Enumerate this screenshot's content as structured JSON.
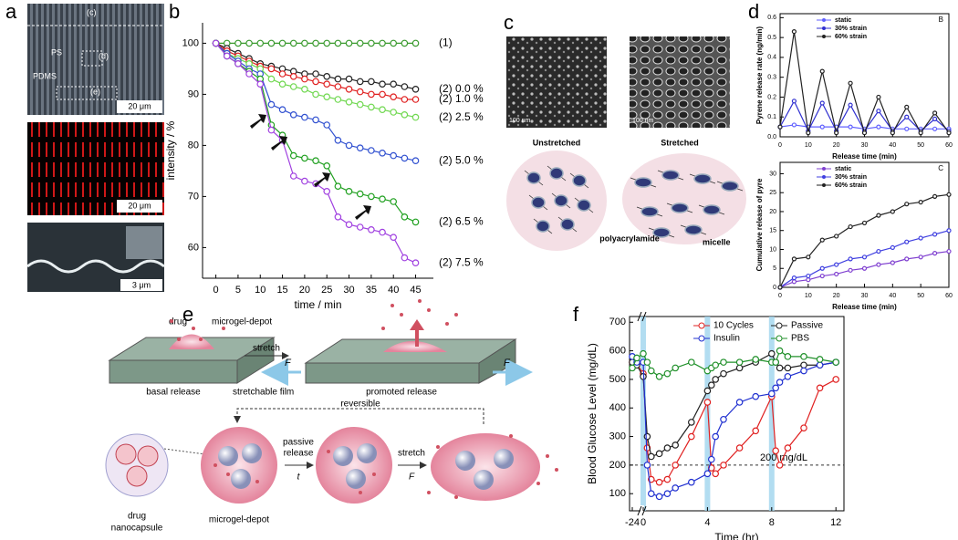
{
  "panel_labels": [
    "a",
    "b",
    "c",
    "d",
    "e",
    "f"
  ],
  "panel_a": {
    "region_c": "(c)",
    "region_d": "(d)",
    "region_e": "(e)",
    "ps": "PS",
    "pdms": "PDMS",
    "scale_top": "20 μm",
    "scale_mid": "20 μm",
    "scale_bottom": "3 μm"
  },
  "panel_c": {
    "left_caption": "Unstretched",
    "right_caption": "Stretched",
    "scale_left": "100 nm",
    "scale_right": "100 nm",
    "polymer": "polyacrylamide",
    "micelle": "micelle"
  },
  "panel_e": {
    "drug": "drug",
    "depot": "microgel-depot",
    "stretch_top": "stretch",
    "force_left": "F",
    "force_right": "F",
    "basal": "basal release",
    "film": "stretchable film",
    "promoted": "promoted release",
    "reversible": "reversible",
    "passive_1": "passive",
    "passive_2": "release",
    "time": "t",
    "stretch_bottom": "stretch",
    "force_bottom": "F",
    "nanocapsule_1": "drug",
    "nanocapsule_2": "nanocapsule",
    "depot_bottom": "microgel-depot"
  },
  "chart_data": [
    {
      "type": "line",
      "xlabel": "time / min",
      "ylabel": "intensity / %",
      "legend": "line end",
      "xlim": [
        -3,
        49
      ],
      "ylim": [
        54,
        104
      ],
      "xticks": [
        0,
        5,
        10,
        15,
        20,
        25,
        30,
        35,
        40,
        45
      ],
      "yticks": [
        60,
        70,
        80,
        90,
        100
      ],
      "x": [
        0,
        2.5,
        5,
        7.5,
        10,
        12.5,
        15,
        17.5,
        20,
        22.5,
        25,
        27.5,
        30,
        32.5,
        35,
        37.5,
        40,
        42.5,
        45
      ],
      "series": [
        {
          "name": "(1)",
          "color": "#3a9a2e",
          "values": [
            100,
            100,
            100,
            100,
            100,
            100,
            100,
            100,
            100,
            100,
            100,
            100,
            100,
            100,
            100,
            100,
            100,
            100,
            100
          ]
        },
        {
          "name": "(2) 0.0 %",
          "color": "#222222",
          "values": [
            100,
            99,
            98,
            97,
            96,
            95.5,
            95,
            94.5,
            94,
            94,
            93.5,
            93,
            93,
            92.5,
            92.5,
            92,
            92,
            91.5,
            91
          ]
        },
        {
          "name": "(2) 1.0 %",
          "color": "#e02020",
          "values": [
            100,
            98.5,
            97.5,
            96.5,
            95.5,
            95,
            94,
            93.5,
            93,
            92.5,
            92,
            91.5,
            91,
            90.5,
            90,
            90,
            89.5,
            89,
            89
          ]
        },
        {
          "name": "(2) 2.5 %",
          "color": "#70d850",
          "values": [
            100,
            98,
            97,
            96,
            95,
            93,
            92,
            91.5,
            91,
            90,
            89.5,
            89,
            88.5,
            88,
            87.5,
            87,
            86.5,
            86,
            85.5
          ]
        },
        {
          "name": "(2) 5.0 %",
          "color": "#3050d0",
          "values": [
            100,
            98,
            96.5,
            95,
            94,
            88,
            87,
            86,
            85.5,
            85,
            84,
            81,
            80,
            79.5,
            79,
            78.5,
            78,
            77.5,
            77
          ]
        },
        {
          "name": "(2) 6.5 %",
          "color": "#20a020",
          "values": [
            100,
            97.5,
            96,
            94.5,
            93,
            84,
            82,
            78,
            77.5,
            77,
            76,
            72,
            71,
            70.5,
            70,
            69.5,
            69,
            66,
            65
          ]
        },
        {
          "name": "(2) 7.5 %",
          "color": "#a040e0",
          "values": [
            100,
            97.5,
            96,
            94,
            92,
            83,
            81,
            74,
            73,
            72.5,
            71,
            66,
            64.5,
            64,
            63.5,
            63,
            62,
            58,
            57
          ]
        }
      ]
    },
    {
      "type": "line",
      "panel_letter": "B",
      "xlabel": "Release time (min)",
      "ylabel": "Pyrene release rate (ng/min)",
      "legend": "upper left",
      "xlim": [
        0,
        60
      ],
      "ylim": [
        0,
        0.62
      ],
      "xticks": [
        0,
        10,
        20,
        30,
        40,
        50,
        60
      ],
      "yticks": [
        {
          "value": 0,
          "label": "0.0"
        },
        0.1,
        0.2,
        0.3,
        0.4,
        0.5,
        0.6
      ],
      "x": [
        0,
        5,
        10,
        15,
        20,
        25,
        30,
        35,
        40,
        45,
        50,
        55,
        60
      ],
      "series": [
        {
          "name": "static",
          "color": "#6060ff",
          "values": [
            0.05,
            0.06,
            0.05,
            0.05,
            0.05,
            0.05,
            0.04,
            0.05,
            0.04,
            0.04,
            0.04,
            0.04,
            0.04
          ]
        },
        {
          "name": "30% strain",
          "color": "#3030d0",
          "values": [
            0.05,
            0.18,
            0.03,
            0.17,
            0.03,
            0.16,
            0.03,
            0.13,
            0.03,
            0.1,
            0.03,
            0.09,
            0.03
          ]
        },
        {
          "name": "60% strain",
          "color": "#222222",
          "values": [
            0.05,
            0.53,
            0.02,
            0.33,
            0.02,
            0.27,
            0.02,
            0.2,
            0.02,
            0.15,
            0.02,
            0.12,
            0.02
          ]
        }
      ]
    },
    {
      "type": "line",
      "panel_letter": "C",
      "xlabel": "Release time (min)",
      "ylabel": "Cumulative release of pyre",
      "legend": "upper left",
      "xlim": [
        0,
        60
      ],
      "ylim": [
        0,
        33
      ],
      "xticks": [
        0,
        10,
        20,
        30,
        40,
        50,
        60
      ],
      "yticks": [
        0,
        5,
        10,
        15,
        20,
        25,
        30
      ],
      "x": [
        0,
        5,
        10,
        15,
        20,
        25,
        30,
        35,
        40,
        45,
        50,
        55,
        60
      ],
      "series": [
        {
          "name": "static",
          "color": "#8040d0",
          "values": [
            0,
            1.5,
            2,
            3,
            3.5,
            4.5,
            5,
            6,
            6.5,
            7.5,
            8,
            9,
            9.5
          ]
        },
        {
          "name": "30% strain",
          "color": "#4040e0",
          "values": [
            0,
            2.5,
            3,
            5,
            6,
            7.5,
            8,
            9.5,
            10.5,
            12,
            13,
            14,
            15
          ]
        },
        {
          "name": "60% strain",
          "color": "#222222",
          "values": [
            0,
            7.5,
            8,
            12.5,
            13.5,
            16,
            17,
            19,
            20,
            22,
            22.5,
            24,
            24.5
          ]
        }
      ]
    },
    {
      "type": "line",
      "xlabel": "Time (hr)",
      "ylabel": "Blood Glucose Level (mg/dL)",
      "legend": "upper center",
      "axis_break": true,
      "xlim": [
        -24,
        12.5
      ],
      "ylim": [
        40,
        720
      ],
      "xticks": [
        -24,
        0,
        4,
        8,
        12
      ],
      "yticks": [
        100,
        200,
        300,
        400,
        500,
        600,
        700
      ],
      "highlight_x": [
        0,
        4,
        8
      ],
      "ref_line": 200,
      "ref_label": "200 mg/dL",
      "x": [
        -24,
        -12,
        0,
        0.25,
        0.5,
        1,
        1.5,
        2,
        3,
        4,
        4.25,
        4.5,
        5,
        6,
        7,
        8,
        8.25,
        8.5,
        9,
        10,
        11,
        12
      ],
      "series": [
        {
          "name": "10 Cycles",
          "color": "#e02020",
          "values": [
            560,
            555,
            520,
            260,
            150,
            140,
            150,
            200,
            300,
            420,
            190,
            170,
            200,
            260,
            320,
            440,
            250,
            200,
            260,
            330,
            470,
            500
          ]
        },
        {
          "name": "Passive",
          "color": "#222222",
          "values": [
            560,
            550,
            510,
            300,
            230,
            240,
            260,
            270,
            350,
            460,
            480,
            500,
            520,
            540,
            560,
            590,
            560,
            540,
            540,
            550,
            550,
            560
          ]
        },
        {
          "name": "Insulin",
          "color": "#2030d0",
          "values": [
            580,
            560,
            560,
            200,
            100,
            90,
            100,
            120,
            140,
            170,
            220,
            300,
            360,
            420,
            440,
            450,
            470,
            490,
            510,
            530,
            550,
            560
          ]
        },
        {
          "name": "PBS",
          "color": "#20902a",
          "values": [
            540,
            575,
            590,
            560,
            530,
            510,
            520,
            540,
            560,
            530,
            540,
            550,
            560,
            560,
            570,
            560,
            560,
            600,
            580,
            580,
            570,
            560
          ]
        }
      ]
    }
  ]
}
